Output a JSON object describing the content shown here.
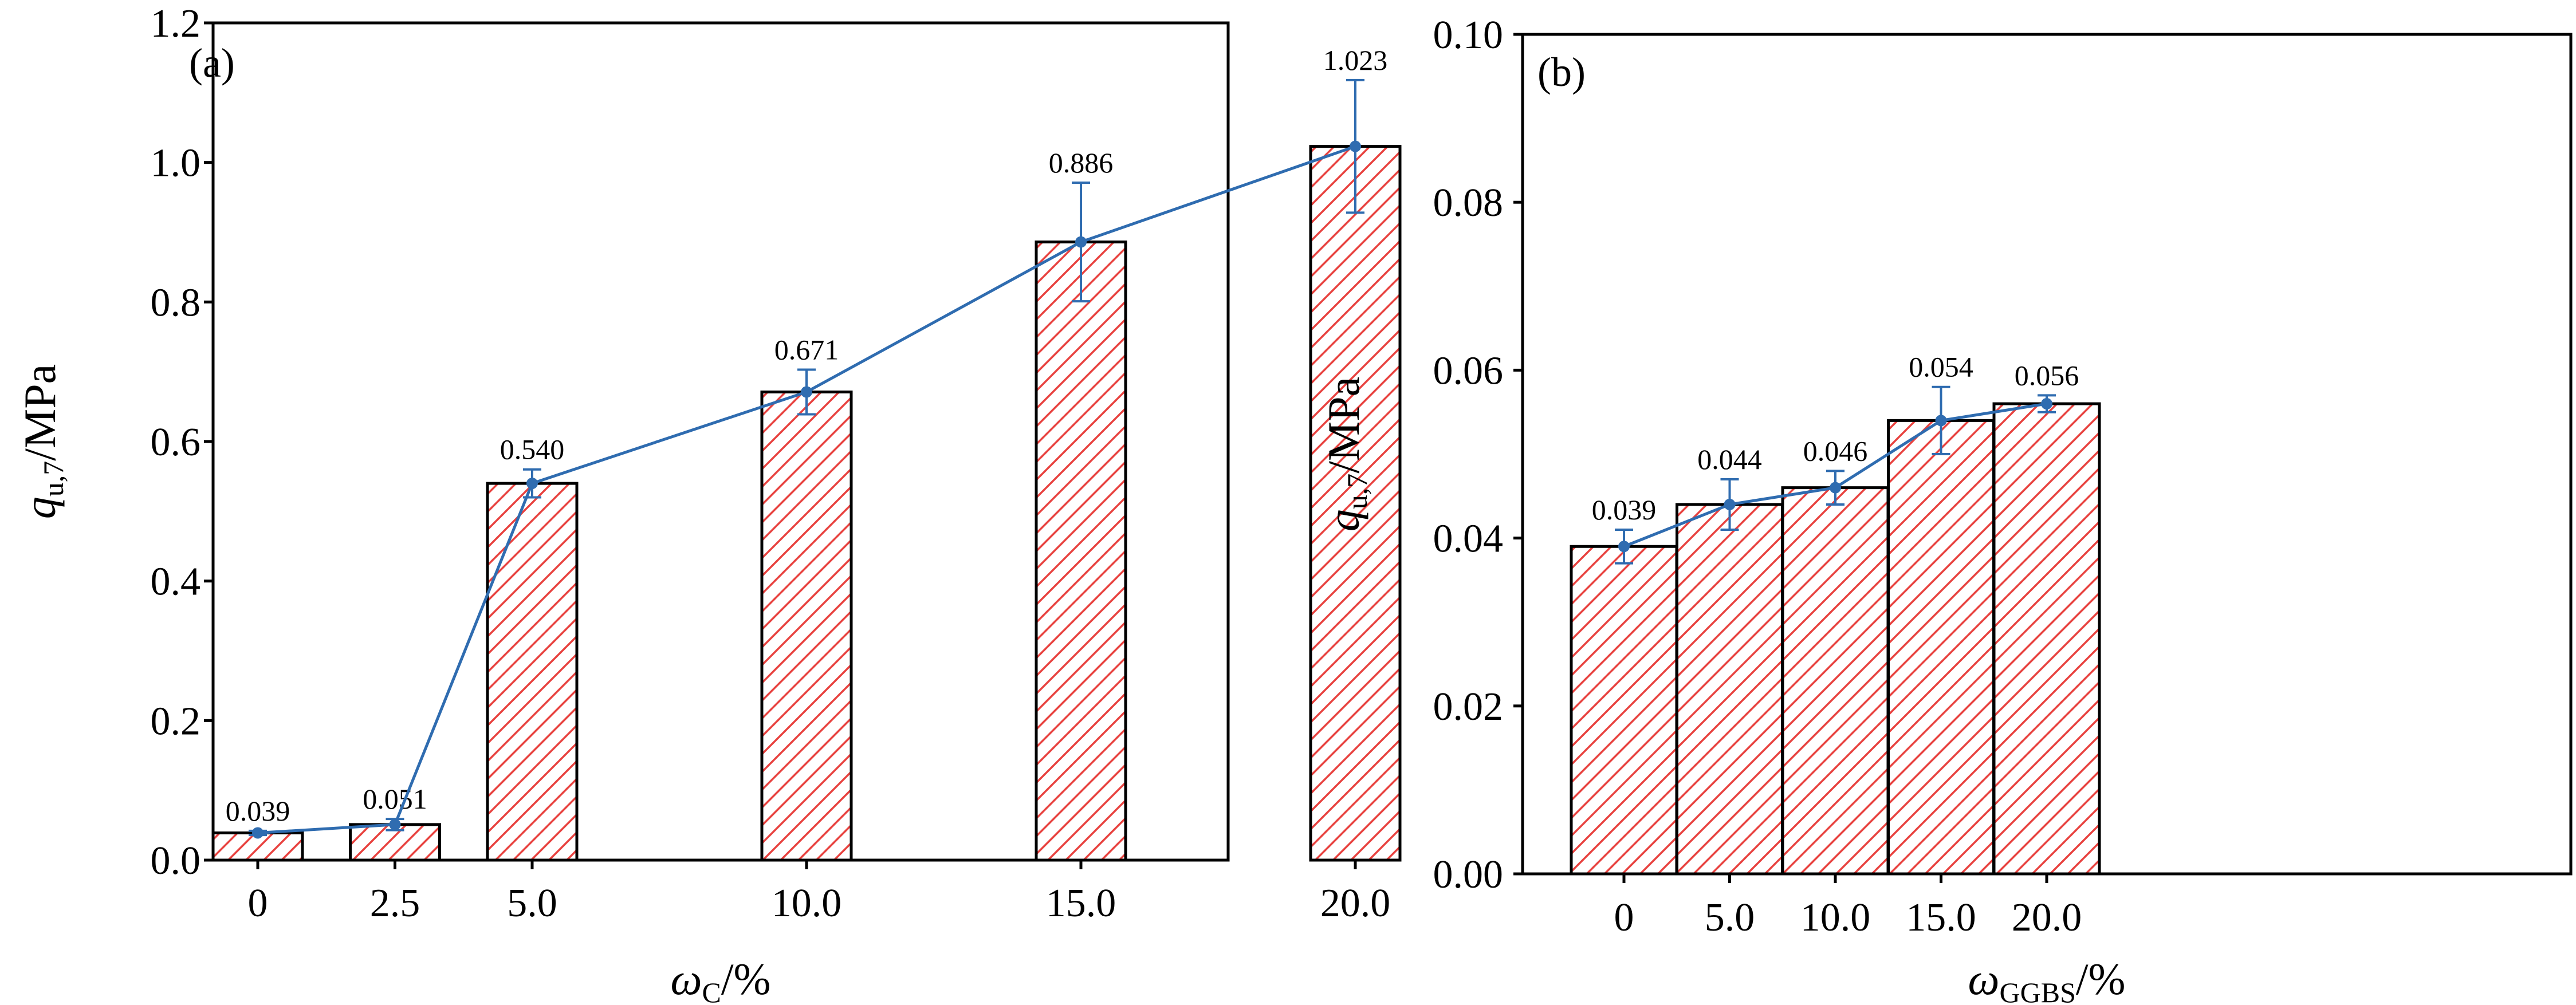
{
  "chart_data": [
    {
      "type": "bar",
      "panel_label": "(a)",
      "categories": [
        "0",
        "2.5",
        "5.0",
        "10.0",
        "15.0",
        "20.0"
      ],
      "x": [
        0,
        2.5,
        5.0,
        10.0,
        15.0,
        20.0
      ],
      "values": [
        0.039,
        0.051,
        0.54,
        0.671,
        0.886,
        1.023
      ],
      "value_labels": [
        "0.039",
        "0.051",
        "0.540",
        "0.671",
        "0.886",
        "1.023"
      ],
      "error_bars": [
        0.003,
        0.008,
        0.02,
        0.032,
        0.085,
        0.095
      ],
      "line_overlay": true,
      "ylim": [
        0.0,
        1.2
      ],
      "yticks": [
        "0.0",
        "0.2",
        "0.4",
        "0.6",
        "0.8",
        "1.0",
        "1.2"
      ],
      "xlabel": {
        "symbol": "ω",
        "sub": "C",
        "suffix": "/%"
      },
      "ylabel": {
        "symbol": "q",
        "sub": "u,7",
        "suffix": "/MPa"
      },
      "colors": {
        "bar_hatch": "#e8423f",
        "bar_edge": "#000000",
        "line": "#2f6cb0"
      }
    },
    {
      "type": "bar",
      "panel_label": "(b)",
      "categories": [
        "0",
        "5.0",
        "10.0",
        "15.0",
        "20.0"
      ],
      "x": [
        0,
        5.0,
        10.0,
        15.0,
        20.0
      ],
      "values": [
        0.039,
        0.044,
        0.046,
        0.054,
        0.056
      ],
      "value_labels": [
        "0.039",
        "0.044",
        "0.046",
        "0.054",
        "0.056"
      ],
      "error_bars": [
        0.002,
        0.003,
        0.002,
        0.004,
        0.001
      ],
      "line_overlay": true,
      "ylim": [
        0.0,
        0.1
      ],
      "yticks": [
        "0.00",
        "0.02",
        "0.04",
        "0.06",
        "0.08",
        "0.10"
      ],
      "xlabel": {
        "symbol": "ω",
        "sub": "GGBS",
        "suffix": "/%"
      },
      "ylabel": {
        "symbol": "q",
        "sub": "u,7",
        "suffix": "/MPa"
      },
      "colors": {
        "bar_hatch": "#e8423f",
        "bar_edge": "#000000",
        "line": "#2f6cb0"
      }
    }
  ]
}
